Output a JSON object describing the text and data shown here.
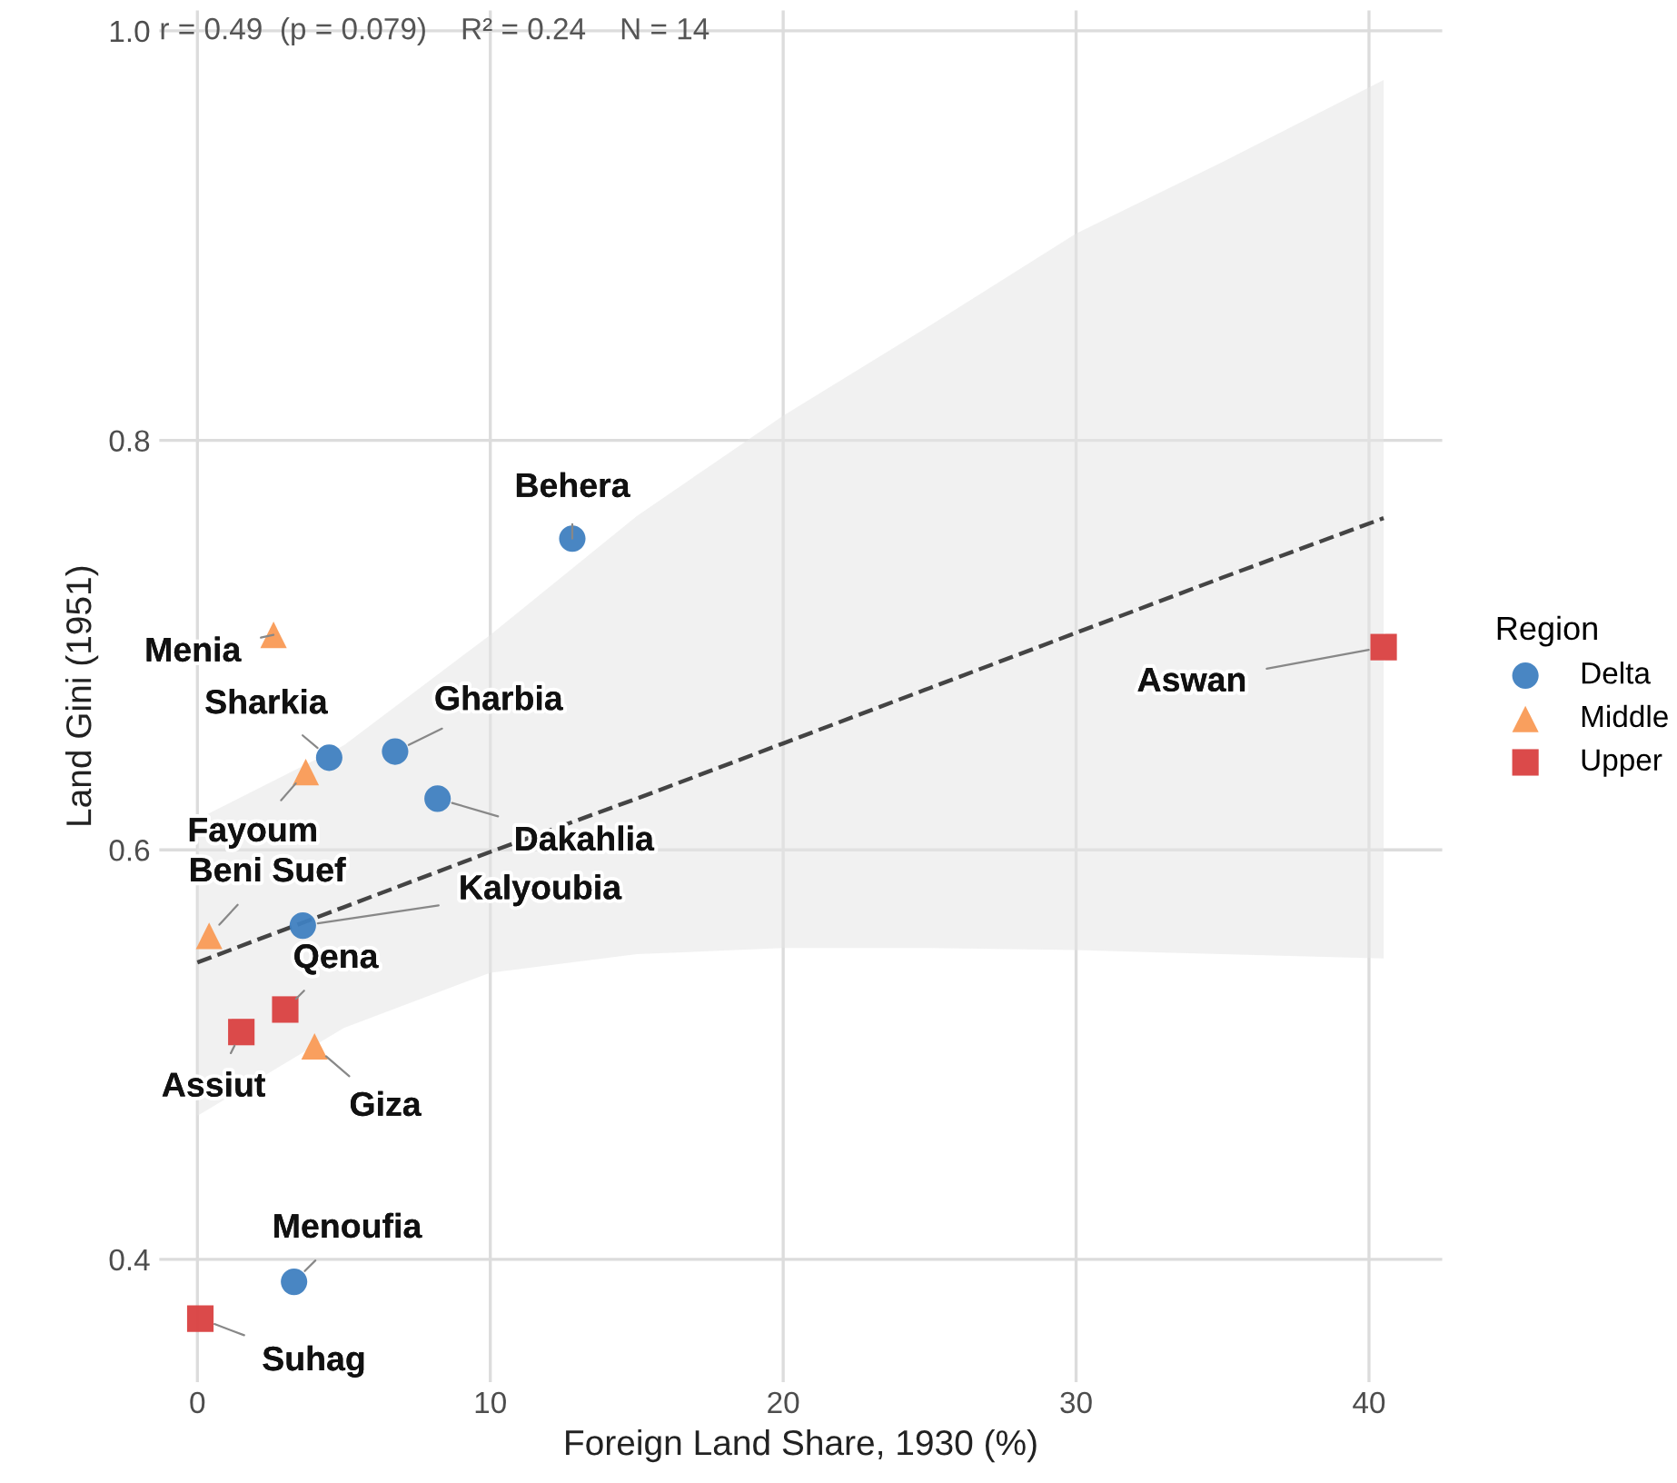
{
  "chart_data": {
    "type": "scatter",
    "xlabel": "Foreign Land Share, 1930 (%)",
    "ylabel": "Land Gini (1951)",
    "legend_title": "Region",
    "xlim": [
      -1.3,
      42.5
    ],
    "ylim": [
      0.34,
      1.01
    ],
    "xticks": [
      0,
      10,
      20,
      30,
      40
    ],
    "yticks": [
      {
        "value": 0.4,
        "label": "0.4"
      },
      {
        "value": 0.6,
        "label": "0.6"
      },
      {
        "value": 0.8,
        "label": "0.8"
      },
      {
        "value": 1.0,
        "label": "1.0"
      }
    ],
    "grid": true,
    "legend": "right",
    "series": [
      {
        "type": "line",
        "line_style": "dashed",
        "marker": "none",
        "color": "#444444",
        "x": [
          0,
          5,
          10,
          15,
          20,
          25,
          30,
          35,
          40.5
        ],
        "values": [
          0.545,
          0.572,
          0.599,
          0.625,
          0.652,
          0.679,
          0.706,
          0.733,
          0.762
        ],
        "lower": [
          0.47,
          0.513,
          0.54,
          0.549,
          0.552,
          0.552,
          0.551,
          0.549,
          0.547
        ],
        "upper": [
          0.615,
          0.651,
          0.705,
          0.763,
          0.812,
          0.856,
          0.901,
          0.936,
          0.976
        ]
      },
      {
        "name": "Delta",
        "marker": "circle",
        "color": "#3f7fc0",
        "x": [
          12.8,
          4.5,
          6.75,
          8.2,
          3.6,
          3.3
        ],
        "values": [
          0.752,
          0.645,
          0.648,
          0.625,
          0.563,
          0.389
        ]
      },
      {
        "name": "Middle",
        "marker": "triangle",
        "color": "#f99a55",
        "x": [
          2.6,
          3.7,
          0.4,
          4.0
        ],
        "values": [
          0.705,
          0.638,
          0.558,
          0.504
        ]
      },
      {
        "name": "Upper",
        "marker": "square",
        "color": "#d94040",
        "x": [
          40.5,
          3.0,
          1.5,
          0.1
        ],
        "values": [
          0.699,
          0.522,
          0.511,
          0.371
        ]
      }
    ],
    "annotations": [
      "r = 0.49  (p = 0.079)    R² = 0.24    N = 14",
      {
        "text": "Behera",
        "x": 12.8,
        "y": 0.752
      },
      {
        "text": "Menia",
        "x": 2.6,
        "y": 0.705
      },
      {
        "text": "Aswan",
        "x": 40.5,
        "y": 0.699
      },
      {
        "text": "Sharkia",
        "x": 4.5,
        "y": 0.645
      },
      {
        "text": "Gharbia",
        "x": 6.75,
        "y": 0.648
      },
      {
        "text": "Fayoum",
        "x": 3.7,
        "y": 0.638
      },
      {
        "text": "Dakahlia",
        "x": 8.2,
        "y": 0.625
      },
      {
        "text": "Kalyoubia",
        "x": 3.6,
        "y": 0.563
      },
      {
        "text": "Beni Suef",
        "x": 0.4,
        "y": 0.558
      },
      {
        "text": "Qena",
        "x": 3.0,
        "y": 0.522
      },
      {
        "text": "Assiut",
        "x": 1.5,
        "y": 0.511
      },
      {
        "text": "Giza",
        "x": 4.0,
        "y": 0.504
      },
      {
        "text": "Menoufia",
        "x": 3.3,
        "y": 0.389
      },
      {
        "text": "Suhag",
        "x": 0.1,
        "y": 0.371
      }
    ]
  }
}
